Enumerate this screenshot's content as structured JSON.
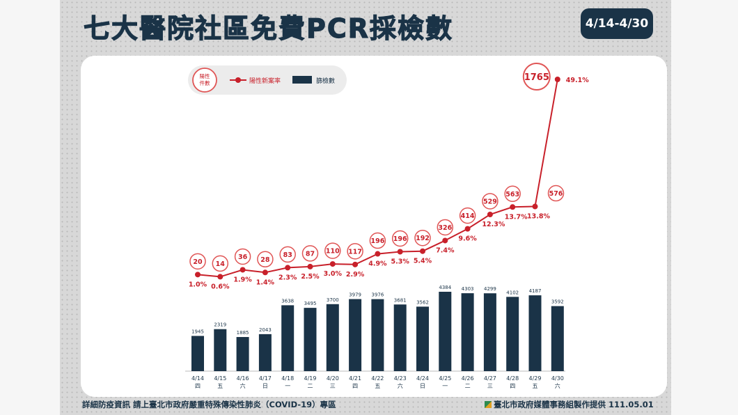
{
  "title": "七大醫院社區免費PCR採檢數",
  "date_range": "4/14-4/30",
  "footer_left": "詳細防疫資訊 請上臺北市政府嚴重特殊傳染性肺炎（COVID-19）專區",
  "footer_right": "臺北市政府媒體事務組製作提供 111.05.01",
  "colors": {
    "navy": "#1a3347",
    "red": "#c8202a",
    "badge_ring": "#e05555"
  },
  "legend": {
    "positive_count": "陽性件數",
    "positive_rate": "陽性新案率",
    "screened": "篩檢數"
  },
  "chart_data": {
    "type": "bar",
    "categories": [
      "4/14",
      "4/15",
      "4/16",
      "4/17",
      "4/18",
      "4/19",
      "4/20",
      "4/21",
      "4/22",
      "4/23",
      "4/24",
      "4/25",
      "4/26",
      "4/27",
      "4/28",
      "4/29",
      "4/30"
    ],
    "weekdays": [
      "四",
      "五",
      "六",
      "日",
      "一",
      "二",
      "三",
      "四",
      "五",
      "六",
      "日",
      "一",
      "二",
      "三",
      "四",
      "五",
      "六"
    ],
    "series": [
      {
        "name": "篩檢數",
        "type": "bar",
        "values": [
          1945,
          2319,
          1885,
          2043,
          3638,
          3495,
          3700,
          3979,
          3976,
          3681,
          3562,
          4384,
          4303,
          4299,
          4102,
          4187,
          3592
        ]
      },
      {
        "name": "陽性新案率",
        "type": "line",
        "values": [
          1.0,
          0.6,
          1.9,
          1.4,
          2.3,
          2.5,
          3.0,
          2.9,
          4.9,
          5.3,
          5.4,
          7.4,
          9.6,
          12.3,
          13.7,
          13.8,
          49.1
        ],
        "labels": [
          "1.0%",
          "0.6%",
          "1.9%",
          "1.4%",
          "2.3%",
          "2.5%",
          "3.0%",
          "2.9%",
          "4.9%",
          "5.3%",
          "5.4%",
          "7.4%",
          "9.6%",
          "12.3%",
          "13.7%",
          "13.8%",
          "49.1%"
        ]
      },
      {
        "name": "陽性件數",
        "type": "badge",
        "values": [
          20,
          14,
          36,
          28,
          83,
          87,
          110,
          117,
          196,
          196,
          192,
          326,
          414,
          529,
          563,
          576,
          1765
        ]
      }
    ],
    "ylim_bar": [
      0,
      4384
    ],
    "ylim_rate": [
      0,
      49.1
    ],
    "legend_position": "top-left",
    "grid": false
  }
}
